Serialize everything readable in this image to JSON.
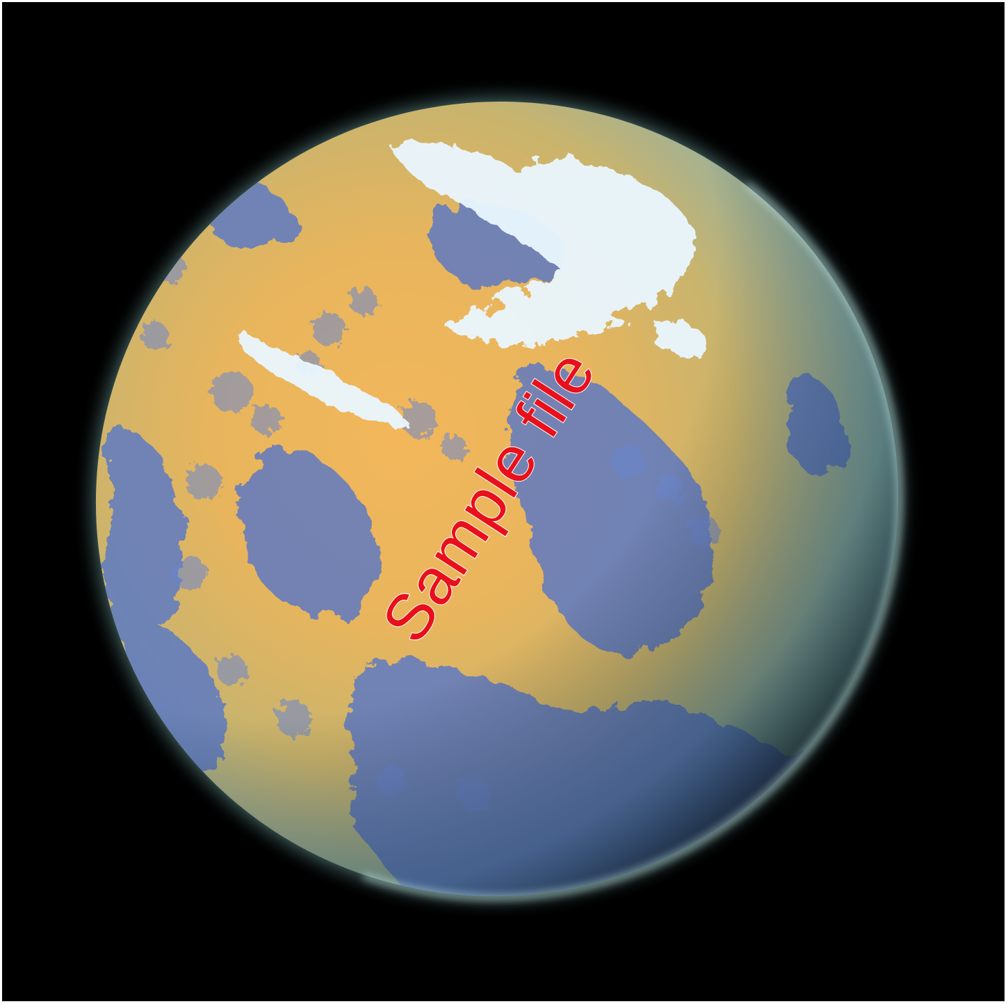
{
  "scene": {
    "subject": "planet",
    "colors": {
      "background": "#000000",
      "frame_border": "#ffffff",
      "land": "#e9b45a",
      "water": "#5b78c4",
      "cloud": "#e8f6ff",
      "atmosphere_rim": "#bff4f2",
      "shadow_tint": "#3f7f86"
    }
  },
  "watermark": {
    "text": "Sample file",
    "color": "#e8101a"
  }
}
